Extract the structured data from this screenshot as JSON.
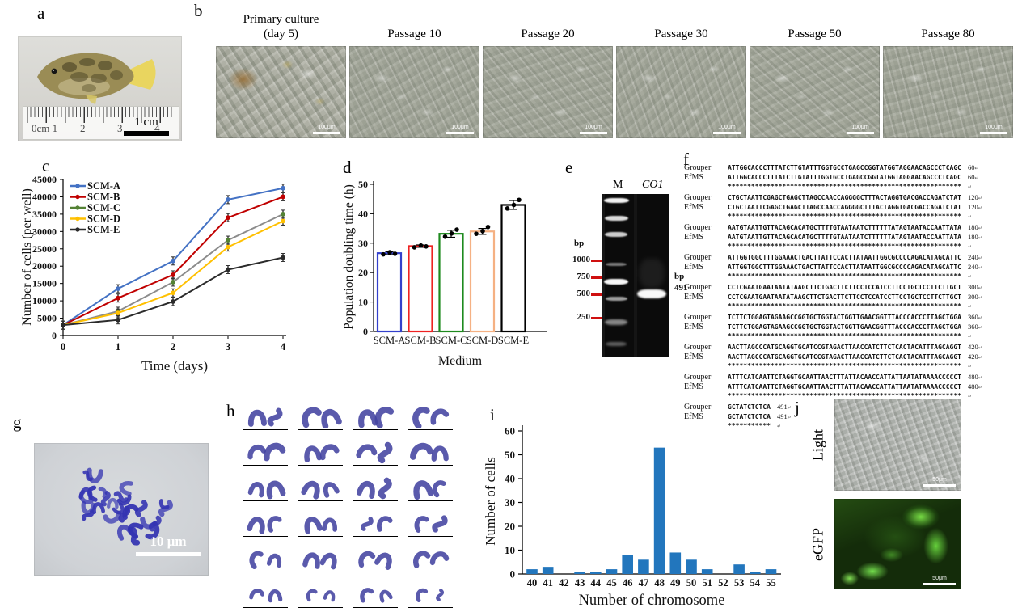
{
  "figure": {
    "panels": {
      "a": {
        "label": "a",
        "ruler_marks": [
          "0cm 1",
          "2",
          "3",
          "4"
        ],
        "scale_text": "1 cm"
      },
      "b": {
        "label": "b",
        "items": [
          {
            "title": "Primary culture",
            "subtitle": "(day 5)",
            "scale": "100μm"
          },
          {
            "title": "Passage 10",
            "subtitle": "",
            "scale": "100μm"
          },
          {
            "title": "Passage 20",
            "subtitle": "",
            "scale": "100μm"
          },
          {
            "title": "Passage 30",
            "subtitle": "",
            "scale": "100μm"
          },
          {
            "title": "Passage 50",
            "subtitle": "",
            "scale": "100μm"
          },
          {
            "title": "Passage 80",
            "subtitle": "",
            "scale": "100μm"
          }
        ]
      },
      "c": {
        "label": "c"
      },
      "d": {
        "label": "d"
      },
      "e": {
        "label": "e",
        "lanes": [
          "M",
          "CO1"
        ],
        "unit": "bp",
        "ladder": [
          "1000",
          "750",
          "500",
          "250"
        ],
        "band_unit": "bp",
        "band_size": "491"
      },
      "f": {
        "label": "f",
        "species": [
          "Grouper",
          "EfMS"
        ],
        "return_mark": "↵",
        "match_char": "*",
        "blocks": [
          {
            "seq": "ATTGGCACCCTTTATCTTGTATTTGGTGCCTGAGCCGGTATGGTAGGAACAGCCCTCAGC",
            "end": "60"
          },
          {
            "seq": "CTGCTAATTCGAGCTGAGCTTAGCCAACCAGGGGCTTTACTAGGTGACGACCAGATCTAT",
            "end": "120"
          },
          {
            "seq": "AATGTAATTGTTACAGCACATGCTTTTGTAATAATCTTTTTTATAGTAATACCAATTATA",
            "end": "180"
          },
          {
            "seq": "ATTGGTGGCTTTGGAAACTGACTTATTCCACTTATAATTGGCGCCCCAGACATAGCATTC",
            "end": "240"
          },
          {
            "seq": "CCTCGAATGAATAATATAAGCTTCTGACTTCTTCCTCCATCCTTCCTGCTCCTTCTTGCT",
            "end": "300"
          },
          {
            "seq": "TCTTCTGGAGTAGAAGCCGGTGCTGGTACTGGTTGAACGGTTTACCCACCCTTAGCTGGA",
            "end": "360"
          },
          {
            "seq": "AACTTAGCCCATGCAGGTGCATCCGTAGACTTAACCATCTTCTCACTACATTTAGCAGGT",
            "end": "420"
          },
          {
            "seq": "ATTTCATCAATTCTAGGTGCAATTAACTTTATTACAACCATTATTAATATAAAACCCCCT",
            "end": "480"
          },
          {
            "seq": "GCTATCTCTCA",
            "end": "491"
          }
        ]
      },
      "g": {
        "label": "g",
        "scale_text": "10 μm"
      },
      "h": {
        "label": "h"
      },
      "i": {
        "label": "i"
      },
      "j": {
        "label": "j",
        "items": [
          {
            "label": "Light",
            "scale": "50μm"
          },
          {
            "label": "eGFP",
            "scale": "50μm"
          }
        ]
      }
    }
  },
  "chart_data": [
    {
      "id": "c",
      "type": "line",
      "title": "",
      "x": [
        0,
        1,
        2,
        3,
        4
      ],
      "xlabel": "Time (days)",
      "ylabel": "Number of cells (per well)",
      "ylim": [
        0,
        45000
      ],
      "ytick_step": 5000,
      "legend_position": "top-left",
      "grid": false,
      "error": 600,
      "series": [
        {
          "name": "SCM-A",
          "color": "#4472C4",
          "values": [
            3000,
            13500,
            21500,
            39200,
            42500
          ]
        },
        {
          "name": "SCM-B",
          "color": "#C00000",
          "values": [
            3000,
            10800,
            17500,
            34000,
            40000
          ]
        },
        {
          "name": "SCM-C",
          "color": "#548235",
          "line_color": "#8C8C8C",
          "values": [
            3000,
            7000,
            15400,
            27500,
            35000
          ]
        },
        {
          "name": "SCM-D",
          "color": "#FFC000",
          "values": [
            3000,
            6500,
            12300,
            25500,
            33000
          ]
        },
        {
          "name": "SCM-E",
          "color": "#2B2B2B",
          "values": [
            3000,
            4500,
            9800,
            19000,
            22500
          ]
        }
      ]
    },
    {
      "id": "d",
      "type": "bar",
      "categories": [
        "SCM-A",
        "SCM-B",
        "SCM-C",
        "SCM-D",
        "SCM-E"
      ],
      "values": [
        26.6,
        29.0,
        33.2,
        34.0,
        43.0
      ],
      "bar_colors": [
        "#3340CC",
        "#EE2222",
        "#1E8A1E",
        "#F5B183",
        "#000000"
      ],
      "dots": [
        [
          26.2,
          26.9,
          26.4
        ],
        [
          28.6,
          29.2,
          28.9
        ],
        [
          32.2,
          33.3,
          34.6
        ],
        [
          33.2,
          34.1,
          35.5
        ],
        [
          41.8,
          43.0,
          44.7
        ]
      ],
      "errors": [
        0.5,
        0.4,
        1.2,
        1.0,
        1.5
      ],
      "xlabel": "Medium",
      "ylabel": "Population doubling time (h)",
      "ylim": [
        0,
        50
      ],
      "ytick_step": 10,
      "grid": false
    },
    {
      "id": "i",
      "type": "bar",
      "categories": [
        "40",
        "41",
        "42",
        "43",
        "44",
        "45",
        "46",
        "47",
        "48",
        "49",
        "50",
        "51",
        "52",
        "53",
        "54",
        "55"
      ],
      "values": [
        2,
        3,
        0,
        1,
        1,
        2,
        8,
        6,
        53,
        9,
        6,
        2,
        0,
        4,
        1,
        2
      ],
      "bar_color": "#2276BD",
      "xlabel": "Number of chromosome",
      "ylabel": "Number of cells",
      "ylim": [
        0,
        60
      ],
      "ytick_step": 10,
      "grid": false
    }
  ]
}
